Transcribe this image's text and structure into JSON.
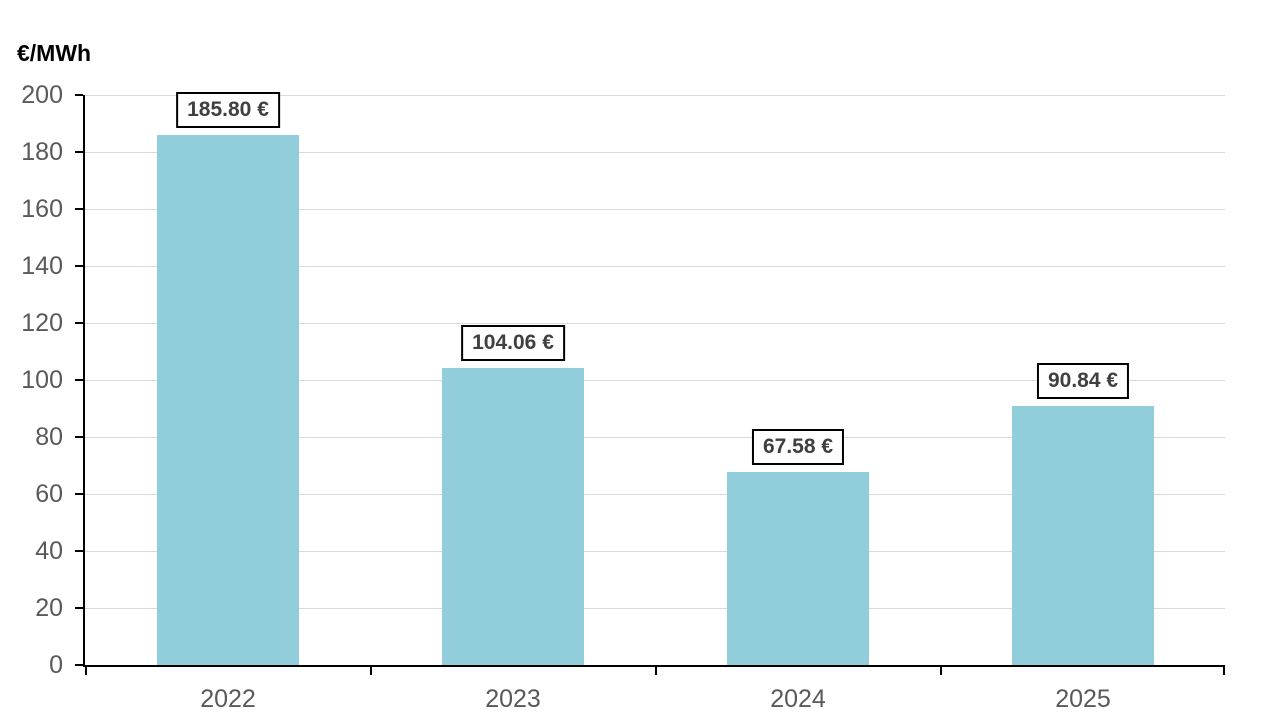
{
  "chart_data": {
    "type": "bar",
    "title": "€/MWh",
    "categories": [
      "2022",
      "2023",
      "2024",
      "2025"
    ],
    "values": [
      185.8,
      104.06,
      67.58,
      90.84
    ],
    "value_labels": [
      "185.80 €",
      "104.06 €",
      "67.58 €",
      "90.84 €"
    ],
    "ylim": [
      0,
      200
    ],
    "ytick_step": 20,
    "ytick_labels": [
      "0",
      "20",
      "40",
      "60",
      "80",
      "100",
      "120",
      "140",
      "160",
      "180",
      "200"
    ],
    "grid": true,
    "legend": "none",
    "colors": {
      "bar": "#92CDDC",
      "gridline": "#D9D9D9",
      "axis": "#000000",
      "tick_label": "#595959",
      "title": "#000000",
      "value_label_text": "#404040",
      "value_label_border": "#000000",
      "value_label_bg": "#FFFFFF",
      "background": "#FFFFFF"
    }
  }
}
